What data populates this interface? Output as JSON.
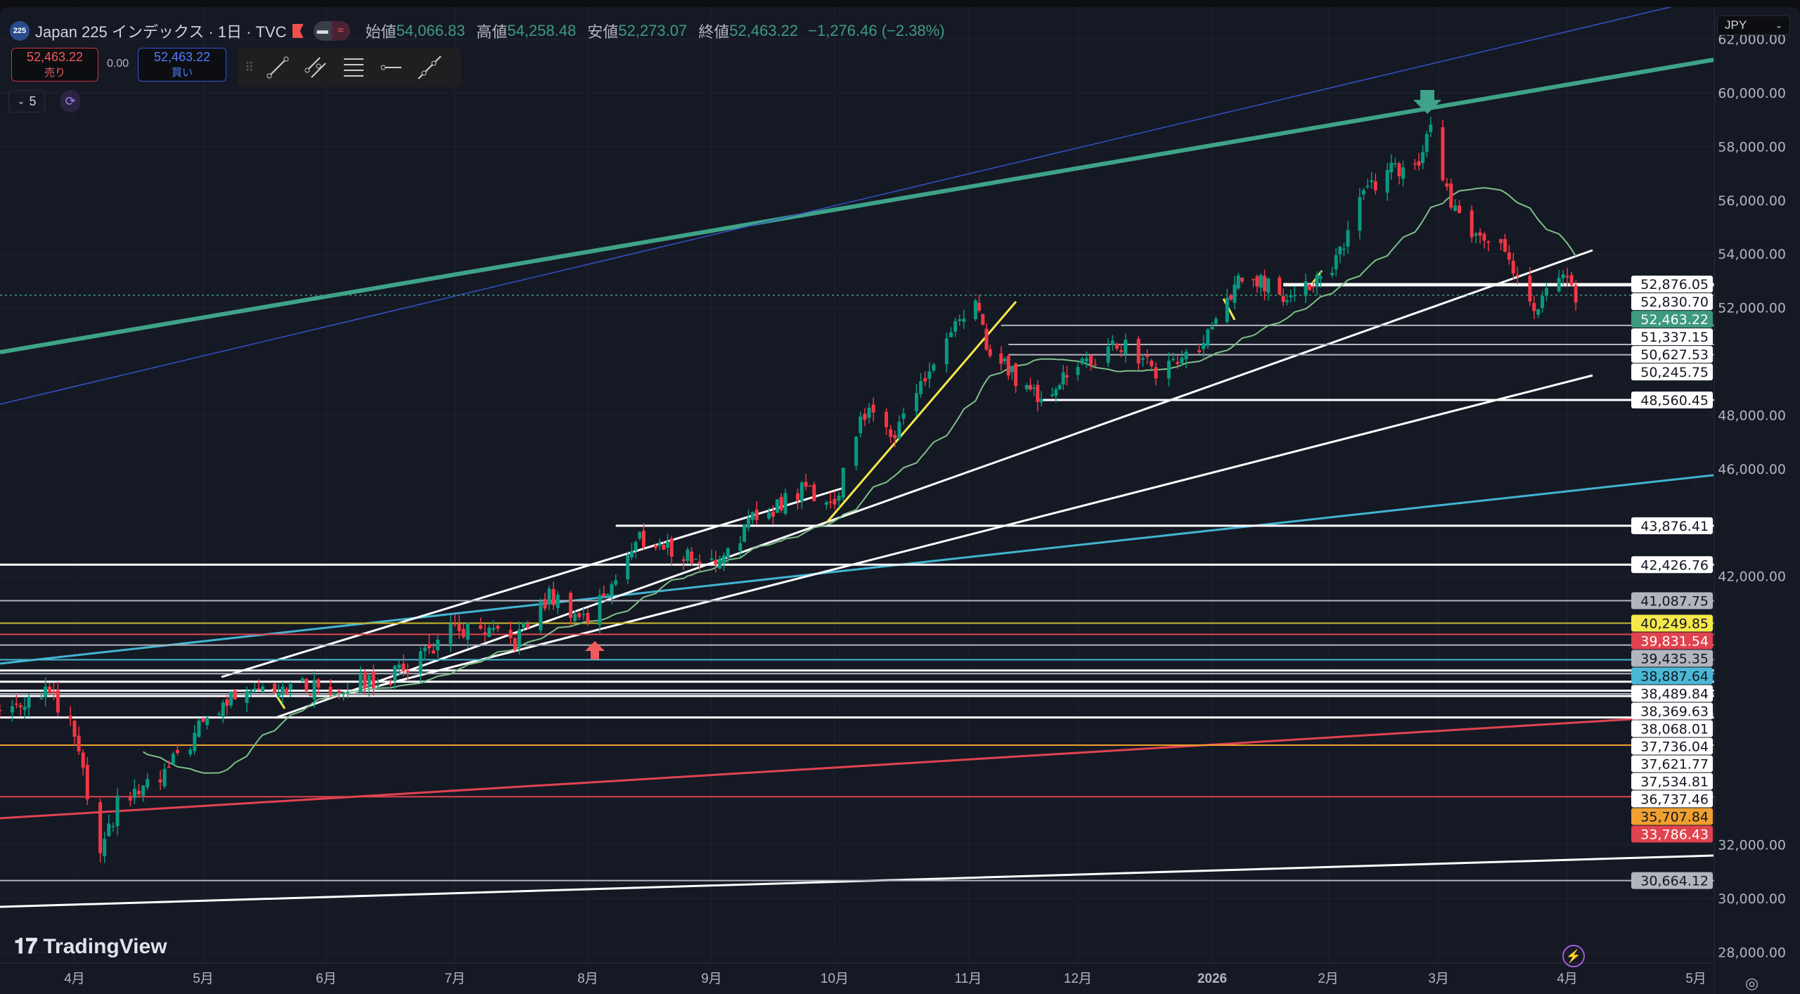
{
  "header": {
    "symbol_badge": "225",
    "title": "Japan 225 インデックス · 1日 · TVC",
    "open_label": "始値",
    "open": "54,066.83",
    "high_label": "高値",
    "high": "54,258.48",
    "low_label": "安値",
    "low": "52,273.07",
    "close_label": "終値",
    "close": "52,463.22",
    "change": "−1,276.46 (−2.38%)"
  },
  "trade": {
    "sell_price": "52,463.22",
    "sell_label": "売り",
    "spread": "0.00",
    "buy_price": "52,463.22",
    "buy_label": "買い"
  },
  "toolbar": {
    "icons": [
      "drag-handle-icon",
      "trend-line-icon",
      "parallel-channel-icon",
      "fib-retracement-icon",
      "horizontal-ray-icon",
      "extended-line-icon"
    ]
  },
  "indicator_toggle": {
    "label": "5"
  },
  "currency": {
    "label": "JPY"
  },
  "logo": {
    "text": "TradingView"
  },
  "colors": {
    "background": "#151924",
    "up": "#089981",
    "down": "#f23645",
    "ma": "#7fbf8a",
    "channel": "#3fa387"
  },
  "chart_data": {
    "type": "candlestick",
    "interval": "1D",
    "approximate_closes": [
      {
        "date": "2025-03-14",
        "close": 36970
      },
      {
        "date": "2025-03-25",
        "close": 37800
      },
      {
        "date": "2025-04-01",
        "close": 36100
      },
      {
        "date": "2025-04-07",
        "close": 31400
      },
      {
        "date": "2025-04-11",
        "close": 33500
      },
      {
        "date": "2025-04-21",
        "close": 34400
      },
      {
        "date": "2025-05-01",
        "close": 36500
      },
      {
        "date": "2025-05-12",
        "close": 38000
      },
      {
        "date": "2025-06-02",
        "close": 37800
      },
      {
        "date": "2025-06-16",
        "close": 38250
      },
      {
        "date": "2025-07-01",
        "close": 40000
      },
      {
        "date": "2025-07-15",
        "close": 39600
      },
      {
        "date": "2025-07-23",
        "close": 41250
      },
      {
        "date": "2025-08-01",
        "close": 40400
      },
      {
        "date": "2025-08-14",
        "close": 43400
      },
      {
        "date": "2025-09-01",
        "close": 42450
      },
      {
        "date": "2025-09-12",
        "close": 44200
      },
      {
        "date": "2025-09-24",
        "close": 45300
      },
      {
        "date": "2025-10-01",
        "close": 44650
      },
      {
        "date": "2025-10-07",
        "close": 48100
      },
      {
        "date": "2025-10-15",
        "close": 47450
      },
      {
        "date": "2025-10-28",
        "close": 51000
      },
      {
        "date": "2025-11-04",
        "close": 52100
      },
      {
        "date": "2025-11-06",
        "close": 50400
      },
      {
        "date": "2025-11-20",
        "close": 48700
      },
      {
        "date": "2025-12-01",
        "close": 49800
      },
      {
        "date": "2025-12-12",
        "close": 50650
      },
      {
        "date": "2025-12-19",
        "close": 49600
      },
      {
        "date": "2025-12-30",
        "close": 50650
      },
      {
        "date": "2026-01-09",
        "close": 53200
      },
      {
        "date": "2026-01-20",
        "close": 52560
      },
      {
        "date": "2026-02-02",
        "close": 53200
      },
      {
        "date": "2026-02-09",
        "close": 56200
      },
      {
        "date": "2026-02-16",
        "close": 57050
      },
      {
        "date": "2026-02-24",
        "close": 57050
      },
      {
        "date": "2026-02-27",
        "close": 58750
      },
      {
        "date": "2026-03-04",
        "close": 55750
      },
      {
        "date": "2026-03-10",
        "close": 54500
      },
      {
        "date": "2026-03-16",
        "close": 54300
      },
      {
        "date": "2026-03-24",
        "close": 52150
      },
      {
        "date": "2026-03-31",
        "close": 53000
      },
      {
        "date": "2026-04-03",
        "close": 52463.22
      }
    ],
    "ylim": [
      27000,
      62500
    ],
    "y_ticks": [
      "62,000.00",
      "60,000.00",
      "58,000.00",
      "56,000.00",
      "54,000.00",
      "52,000.00",
      "48,000.00",
      "46,000.00",
      "42,000.00",
      "32,000.00",
      "30,000.00",
      "28,000.00"
    ],
    "y_tick_values": [
      62000,
      60000,
      58000,
      56000,
      54000,
      52000,
      48000,
      46000,
      42000,
      32000,
      30000,
      28000
    ],
    "x_ticks": [
      {
        "date": "2025-04-01",
        "label": "4月"
      },
      {
        "date": "2025-05-01",
        "label": "5月"
      },
      {
        "date": "2025-06-01",
        "label": "6月"
      },
      {
        "date": "2025-07-01",
        "label": "7月"
      },
      {
        "date": "2025-08-01",
        "label": "8月"
      },
      {
        "date": "2025-09-01",
        "label": "9月"
      },
      {
        "date": "2025-10-01",
        "label": "10月"
      },
      {
        "date": "2025-11-01",
        "label": "11月"
      },
      {
        "date": "2025-12-01",
        "label": "12月"
      },
      {
        "date": "2026-01-01",
        "label": "2026"
      },
      {
        "date": "2026-02-01",
        "label": "2月"
      },
      {
        "date": "2026-03-01",
        "label": "3月"
      },
      {
        "date": "2026-04-01",
        "label": "4月"
      },
      {
        "date": "2026-05-01",
        "label": "5月"
      }
    ],
    "moving_average": {
      "period": 25,
      "color": "#7fbf8a"
    },
    "price_levels": [
      {
        "price": 52876.05,
        "label": "52,876.05",
        "bg": "#ffffff",
        "fg": "#131722",
        "line": "#ffffff",
        "from": "2026-01-20"
      },
      {
        "price": 52830.7,
        "label": "52,830.70",
        "bg": "#ffffff",
        "fg": "#131722",
        "line": "#ffffff",
        "from": "2026-01-20"
      },
      {
        "price": 52463.22,
        "label": "52,463.22",
        "bg": "#3d9a7e",
        "fg": "#ffffff",
        "line": "#3d9a7e",
        "from": "2025-03-01",
        "dotted": true
      },
      {
        "price": 51337.15,
        "label": "51,337.15",
        "bg": "#ffffff",
        "fg": "#131722",
        "line": "#b2b5be",
        "from": "2025-11-10"
      },
      {
        "price": 50627.53,
        "label": "50,627.53",
        "bg": "#ffffff",
        "fg": "#131722",
        "line": "#b2b5be",
        "from": "2025-11-12"
      },
      {
        "price": 50245.75,
        "label": "50,245.75",
        "bg": "#ffffff",
        "fg": "#131722",
        "line": "#b2b5be",
        "from": "2025-11-12"
      },
      {
        "price": 48560.45,
        "label": "48,560.45",
        "bg": "#ffffff",
        "fg": "#131722",
        "line": "#ffffff",
        "from": "2025-11-21"
      },
      {
        "price": 43876.41,
        "label": "43,876.41",
        "bg": "#ffffff",
        "fg": "#131722",
        "line": "#ffffff",
        "from": "2025-08-08"
      },
      {
        "price": 42426.76,
        "label": "42,426.76",
        "bg": "#ffffff",
        "fg": "#131722",
        "line": "#ffffff",
        "from": "2025-03-01"
      },
      {
        "price": 41087.75,
        "label": "41,087.75",
        "bg": "#b2b5be",
        "fg": "#131722",
        "line": "#b2b5be",
        "from": "2025-03-01"
      },
      {
        "price": 40249.85,
        "label": "40,249.85",
        "bg": "#f5e84a",
        "fg": "#131722",
        "line": "#c9b92a",
        "from": "2025-03-01"
      },
      {
        "price": 39831.54,
        "label": "39,831.54",
        "bg": "#e0434f",
        "fg": "#ffffff",
        "line": "#e0434f",
        "from": "2025-03-01"
      },
      {
        "price": 39435.35,
        "label": "39,435.35",
        "bg": "#b2b5be",
        "fg": "#131722",
        "line": "#b2b5be",
        "from": "2025-03-01"
      },
      {
        "price": 38887.64,
        "label": "38,887.64",
        "bg": "#4ab8d4",
        "fg": "#131722",
        "line": "#4ab8d4",
        "from": "2025-03-01"
      },
      {
        "price": 38489.84,
        "label": "38,489.84",
        "bg": "#ffffff",
        "fg": "#131722",
        "line": "#ffffff",
        "from": "2025-03-01"
      },
      {
        "price": 38369.63,
        "label": "38,369.63",
        "bg": "#ffffff",
        "fg": "#131722",
        "line": "#b2b5be",
        "from": "2025-03-01"
      },
      {
        "price": 38068.01,
        "label": "38,068.01",
        "bg": "#ffffff",
        "fg": "#131722",
        "line": "#ffffff",
        "from": "2025-03-01"
      },
      {
        "price": 37736.04,
        "label": "37,736.04",
        "bg": "#ffffff",
        "fg": "#131722",
        "line": "#ffffff",
        "from": "2025-03-01"
      },
      {
        "price": 37621.77,
        "label": "37,621.77",
        "bg": "#ffffff",
        "fg": "#131722",
        "line": "#b2b5be",
        "from": "2025-03-01"
      },
      {
        "price": 37534.81,
        "label": "37,534.81",
        "bg": "#ffffff",
        "fg": "#131722",
        "line": "#ffffff",
        "from": "2025-03-01"
      },
      {
        "price": 36737.46,
        "label": "36,737.46",
        "bg": "#ffffff",
        "fg": "#131722",
        "line": "#ffffff",
        "from": "2025-03-01"
      },
      {
        "price": 35707.84,
        "label": "35,707.84",
        "bg": "#f0a030",
        "fg": "#131722",
        "line": "#f0a030",
        "from": "2025-03-01"
      },
      {
        "price": 33786.43,
        "label": "33,786.43",
        "bg": "#e0434f",
        "fg": "#ffffff",
        "line": "#e0434f",
        "from": "2025-03-01"
      },
      {
        "price": 30664.12,
        "label": "30,664.12",
        "bg": "#b2b5be",
        "fg": "#131722",
        "line": "#b2b5be",
        "from": "2025-03-01"
      }
    ]
  }
}
